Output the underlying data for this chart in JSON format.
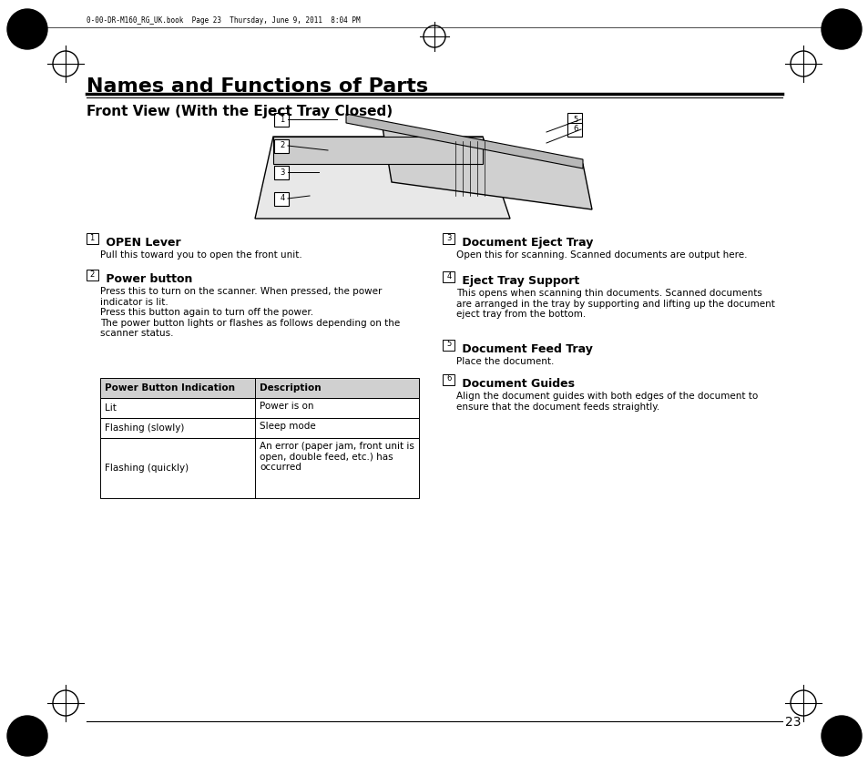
{
  "title": "Names and Functions of Parts",
  "subtitle": "Front View (With the Eject Tray Closed)",
  "header_note": "0-00-DR-M160_RG_UK.book  Page 23  Thursday, June 9, 2011  8:04 PM",
  "page_number": "23",
  "bg_color": "#ffffff",
  "text_color": "#000000",
  "parts_left": [
    {
      "num": "1",
      "title": "OPEN Lever",
      "body": "Pull this toward you to open the front unit."
    },
    {
      "num": "2",
      "title": "Power button",
      "body": "Press this to turn on the scanner. When pressed, the power\nindicator is lit.\nPress this button again to turn off the power.\nThe power button lights or flashes as follows depending on the\nscanner status."
    }
  ],
  "parts_right": [
    {
      "num": "3",
      "title": "Document Eject Tray",
      "body": "Open this for scanning. Scanned documents are output here."
    },
    {
      "num": "4",
      "title": "Eject Tray Support",
      "body": "This opens when scanning thin documents. Scanned documents\nare arranged in the tray by supporting and lifting up the document\neject tray from the bottom."
    },
    {
      "num": "5",
      "title": "Document Feed Tray",
      "body": "Place the document."
    },
    {
      "num": "6",
      "title": "Document Guides",
      "body": "Align the document guides with both edges of the document to\nensure that the document feeds straightly."
    }
  ],
  "table_headers": [
    "Power Button Indication",
    "Description"
  ],
  "table_rows": [
    [
      "Lit",
      "Power is on"
    ],
    [
      "Flashing (slowly)",
      "Sleep mode"
    ],
    [
      "Flashing (quickly)",
      "An error (paper jam, front unit is\nopen, double feed, etc.) has\noccurred"
    ]
  ]
}
